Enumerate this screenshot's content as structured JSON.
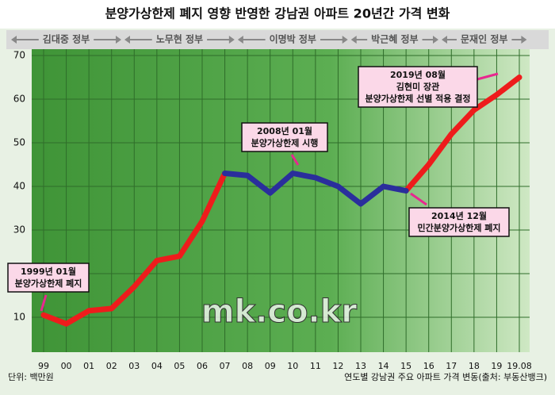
{
  "chart_data": {
    "type": "line",
    "title": "분양가상한제 폐지 영향 반영한 강남권 아파트 20년간 가격 변화",
    "eras": [
      "김대중 정부",
      "노무현 정부",
      "이명박 정부",
      "박근혜 정부",
      "문재인 정부"
    ],
    "categories": [
      "99",
      "00",
      "01",
      "02",
      "03",
      "04",
      "05",
      "06",
      "07",
      "08",
      "09",
      "10",
      "11",
      "12",
      "13",
      "14",
      "15",
      "16",
      "17",
      "18",
      "19",
      "19.08"
    ],
    "series": [
      {
        "color": "#ee1c1c",
        "values": [
          10.5,
          8.5,
          11.5,
          12,
          17,
          23,
          24,
          32,
          43,
          null,
          null,
          null,
          null,
          null,
          null,
          null,
          39,
          45,
          52,
          57.5,
          61,
          65
        ]
      },
      {
        "color": "#2a2e9c",
        "values": [
          null,
          null,
          null,
          null,
          null,
          null,
          null,
          null,
          43,
          42.5,
          38.5,
          43,
          42,
          40,
          36,
          40,
          39,
          null,
          null,
          null,
          null,
          null
        ]
      }
    ],
    "ylim": [
      2,
      70
    ],
    "yticks": [
      10,
      20,
      30,
      40,
      50,
      60,
      70
    ],
    "grid": true,
    "annotations": [
      {
        "lines": [
          "1999년 01월",
          "분양가상한제 폐지"
        ]
      },
      {
        "lines": [
          "2008년 01월",
          "분양가상한제 시행"
        ]
      },
      {
        "lines": [
          "2014년 12월",
          "민간분양가상한제 폐지"
        ]
      },
      {
        "lines": [
          "2019년 08월",
          "김현미 장관",
          "분양가상한제 선별 적용 결정"
        ]
      }
    ],
    "unit_note": "단위: 백만원",
    "source_note": "연도별 강남권 주요 아파트 가격 변동(출처: 부동산뱅크)",
    "watermark": "mk.co.kr"
  }
}
